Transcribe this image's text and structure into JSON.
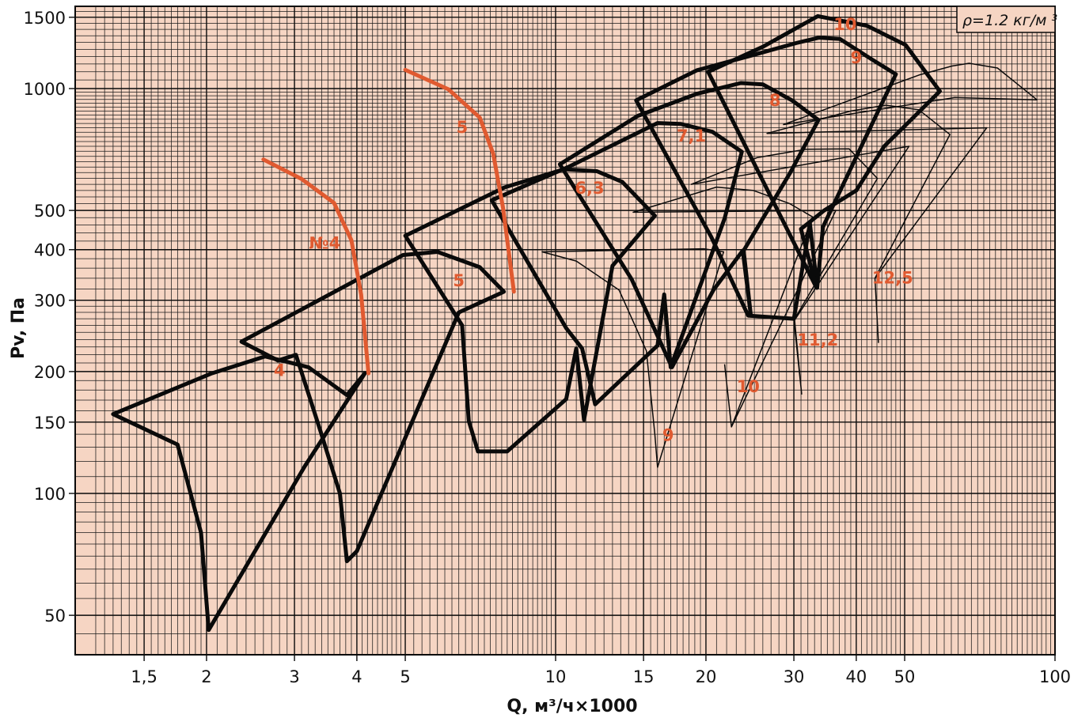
{
  "chart_data": {
    "type": "line",
    "title": "",
    "xlabel": "Q, м³/ч×1000",
    "ylabel": "Pv, Па",
    "xscale": "log",
    "yscale": "log",
    "xlim": [
      1.2,
      100
    ],
    "ylim": [
      40,
      1600
    ],
    "grid": true,
    "background": "#f6d5c3",
    "annotation": "ρ=1.2 кг/м ³",
    "x_ticks": [
      {
        "value": 1.5,
        "label": "1,5"
      },
      {
        "value": 2,
        "label": "2"
      },
      {
        "value": 3,
        "label": "3"
      },
      {
        "value": 4,
        "label": "4"
      },
      {
        "value": 5,
        "label": "5"
      },
      {
        "value": 10,
        "label": "10"
      },
      {
        "value": 15,
        "label": "15"
      },
      {
        "value": 20,
        "label": "20"
      },
      {
        "value": 30,
        "label": "30"
      },
      {
        "value": 40,
        "label": "40"
      },
      {
        "value": 50,
        "label": "50"
      },
      {
        "value": 100,
        "label": "100"
      }
    ],
    "y_ticks": [
      {
        "value": 50,
        "label": "50"
      },
      {
        "value": 100,
        "label": "100"
      },
      {
        "value": 150,
        "label": "150"
      },
      {
        "value": 200,
        "label": "200"
      },
      {
        "value": 300,
        "label": "300"
      },
      {
        "value": 400,
        "label": "400"
      },
      {
        "value": 500,
        "label": "500"
      },
      {
        "value": 1000,
        "label": "1000"
      },
      {
        "value": 1500,
        "label": "1500"
      }
    ],
    "colors": {
      "thick": "#0a0a0a",
      "thin": "#0a0a0a",
      "accent": "#e05a30"
    },
    "series": [
      {
        "name": "4",
        "style": "thick",
        "label_at": [
          2.8,
          195
        ],
        "points": [
          [
            1.3,
            157
          ],
          [
            2.05,
            198
          ],
          [
            2.62,
            218
          ],
          [
            3.2,
            205
          ],
          [
            3.82,
            175
          ],
          [
            4.15,
            198
          ],
          [
            3.15,
            117
          ],
          [
            2.02,
            46
          ],
          [
            1.95,
            80
          ],
          [
            1.75,
            132
          ],
          [
            1.3,
            157
          ]
        ]
      },
      {
        "name": "5",
        "style": "thick",
        "label_at": [
          6.4,
          325
        ],
        "points": [
          [
            2.35,
            237
          ],
          [
            4.95,
            388
          ],
          [
            5.8,
            395
          ],
          [
            7.05,
            362
          ],
          [
            7.88,
            315
          ],
          [
            6.4,
            280
          ],
          [
            4.0,
            72
          ],
          [
            3.82,
            68
          ],
          [
            3.7,
            100
          ],
          [
            3.38,
            143
          ],
          [
            3.02,
            220
          ],
          [
            2.78,
            213
          ],
          [
            2.35,
            237
          ]
        ]
      },
      {
        "name": "6,3",
        "style": "thick",
        "label_at": [
          11.7,
          550
        ],
        "points": [
          [
            5.0,
            433
          ],
          [
            7.9,
            570
          ],
          [
            10.4,
            632
          ],
          [
            12.1,
            625
          ],
          [
            13.6,
            588
          ],
          [
            15.8,
            485
          ],
          [
            13.0,
            365
          ],
          [
            11.4,
            152
          ],
          [
            11.0,
            228
          ],
          [
            10.5,
            171
          ],
          [
            8.0,
            127
          ],
          [
            6.99,
            127
          ],
          [
            6.7,
            151
          ],
          [
            6.5,
            260
          ],
          [
            5.0,
            433
          ]
        ]
      },
      {
        "name": "7,1",
        "style": "thick",
        "label_at": [
          18.7,
          740
        ],
        "points": [
          [
            7.45,
            530
          ],
          [
            10.6,
            640
          ],
          [
            16.0,
            822
          ],
          [
            17.8,
            818
          ],
          [
            20.6,
            782
          ],
          [
            23.6,
            698
          ],
          [
            21.8,
            478
          ],
          [
            17.0,
            205
          ],
          [
            16.5,
            310
          ],
          [
            16.0,
            232
          ],
          [
            12.0,
            166
          ],
          [
            11.3,
            228
          ],
          [
            10.5,
            256
          ],
          [
            7.45,
            530
          ]
        ]
      },
      {
        "name": "8",
        "style": "thick",
        "label_at": [
          27.5,
          905
        ],
        "points": [
          [
            10.2,
            650
          ],
          [
            14.6,
            856
          ],
          [
            19.2,
            971
          ],
          [
            23.5,
            1032
          ],
          [
            26.0,
            1024
          ],
          [
            29.8,
            934
          ],
          [
            33.6,
            836
          ],
          [
            29.5,
            620
          ],
          [
            23.8,
            398
          ],
          [
            24.6,
            275
          ],
          [
            23.7,
            398
          ],
          [
            20.7,
            318
          ],
          [
            17.1,
            205
          ],
          [
            14.2,
            338
          ],
          [
            10.2,
            650
          ]
        ]
      },
      {
        "name": "9",
        "style": "thick",
        "label_at": [
          40.0,
          1155
        ],
        "points": [
          [
            14.5,
            935
          ],
          [
            19.2,
            1110
          ],
          [
            25.0,
            1212
          ],
          [
            30.3,
            1295
          ],
          [
            33.7,
            1336
          ],
          [
            37.1,
            1326
          ],
          [
            43.0,
            1180
          ],
          [
            48.0,
            1085
          ],
          [
            40.5,
            700
          ],
          [
            34.3,
            455
          ],
          [
            33.4,
            322
          ],
          [
            32.3,
            465
          ],
          [
            30.0,
            270
          ],
          [
            24.3,
            275
          ],
          [
            20.5,
            430
          ],
          [
            14.5,
            935
          ]
        ]
      },
      {
        "name": "10",
        "style": "thick",
        "label_at": [
          38.0,
          1395
        ],
        "points": [
          [
            20.2,
            1100
          ],
          [
            26.0,
            1268
          ],
          [
            33.5,
            1510
          ],
          [
            42.0,
            1430
          ],
          [
            50.2,
            1282
          ],
          [
            58.8,
            985
          ],
          [
            45.5,
            720
          ],
          [
            40.0,
            560
          ],
          [
            34.5,
            500
          ],
          [
            31.0,
            450
          ],
          [
            33.3,
            322
          ],
          [
            20.2,
            1100
          ]
        ]
      },
      {
        "name": "9",
        "style": "thin",
        "label_at": [
          16.8,
          135
        ],
        "points": [
          [
            9.4,
            395
          ],
          [
            11.0,
            375
          ],
          [
            13.4,
            318
          ],
          [
            15.2,
            225
          ],
          [
            15.8,
            140
          ],
          [
            16.0,
            116
          ],
          [
            21.7,
            395
          ],
          [
            19.8,
            402
          ],
          [
            9.4,
            395
          ]
        ]
      },
      {
        "name": "10",
        "style": "thin",
        "label_at": [
          24.3,
          178
        ],
        "points": [
          [
            14.3,
            495
          ],
          [
            21.0,
            571
          ],
          [
            24.9,
            560
          ],
          [
            29.4,
            520
          ],
          [
            32.7,
            482
          ],
          [
            22.5,
            146
          ],
          [
            21.8,
            208
          ],
          [
            22.5,
            146
          ],
          [
            36.4,
            500
          ],
          [
            14.3,
            495
          ]
        ]
      },
      {
        "name": "11,2",
        "style": "thin",
        "label_at": [
          33.5,
          232
        ],
        "points": [
          [
            18.7,
            580
          ],
          [
            25.3,
            675
          ],
          [
            31.7,
            708
          ],
          [
            38.7,
            710
          ],
          [
            44.1,
            600
          ],
          [
            30.0,
            268
          ],
          [
            31.1,
            176
          ],
          [
            30.1,
            268
          ],
          [
            51.0,
            720
          ],
          [
            18.7,
            580
          ]
        ]
      },
      {
        "name": "12,5",
        "style": "thin",
        "label_at": [
          47.3,
          330
        ],
        "points": [
          [
            26.5,
            775
          ],
          [
            39.0,
            880
          ],
          [
            45.8,
            910
          ],
          [
            53.4,
            886
          ],
          [
            61.6,
            770
          ],
          [
            43.6,
            340
          ],
          [
            44.3,
            236
          ],
          [
            43.6,
            340
          ],
          [
            73.0,
            800
          ],
          [
            26.5,
            775
          ]
        ]
      },
      {
        "name": "thin-top",
        "style": "thin",
        "points": [
          [
            28.6,
            815
          ],
          [
            53.4,
            1080
          ],
          [
            62.2,
            1137
          ],
          [
            67.3,
            1155
          ],
          [
            76.7,
            1124
          ],
          [
            92.0,
            938
          ],
          [
            63.0,
            950
          ],
          [
            28.6,
            815
          ]
        ]
      }
    ],
    "accent_series": [
      {
        "name": "№4",
        "label_at": [
          3.45,
          402
        ],
        "points": [
          [
            2.6,
            668
          ],
          [
            3.1,
            598
          ],
          [
            3.6,
            522
          ],
          [
            3.9,
            422
          ],
          [
            4.08,
            310
          ],
          [
            4.22,
            198
          ]
        ]
      },
      {
        "name": "5",
        "label_at": [
          6.5,
          778
        ],
        "points": [
          [
            5.0,
            1112
          ],
          [
            6.1,
            996
          ],
          [
            7.05,
            848
          ],
          [
            7.5,
            690
          ],
          [
            7.85,
            506
          ],
          [
            8.25,
            315
          ]
        ]
      }
    ]
  }
}
